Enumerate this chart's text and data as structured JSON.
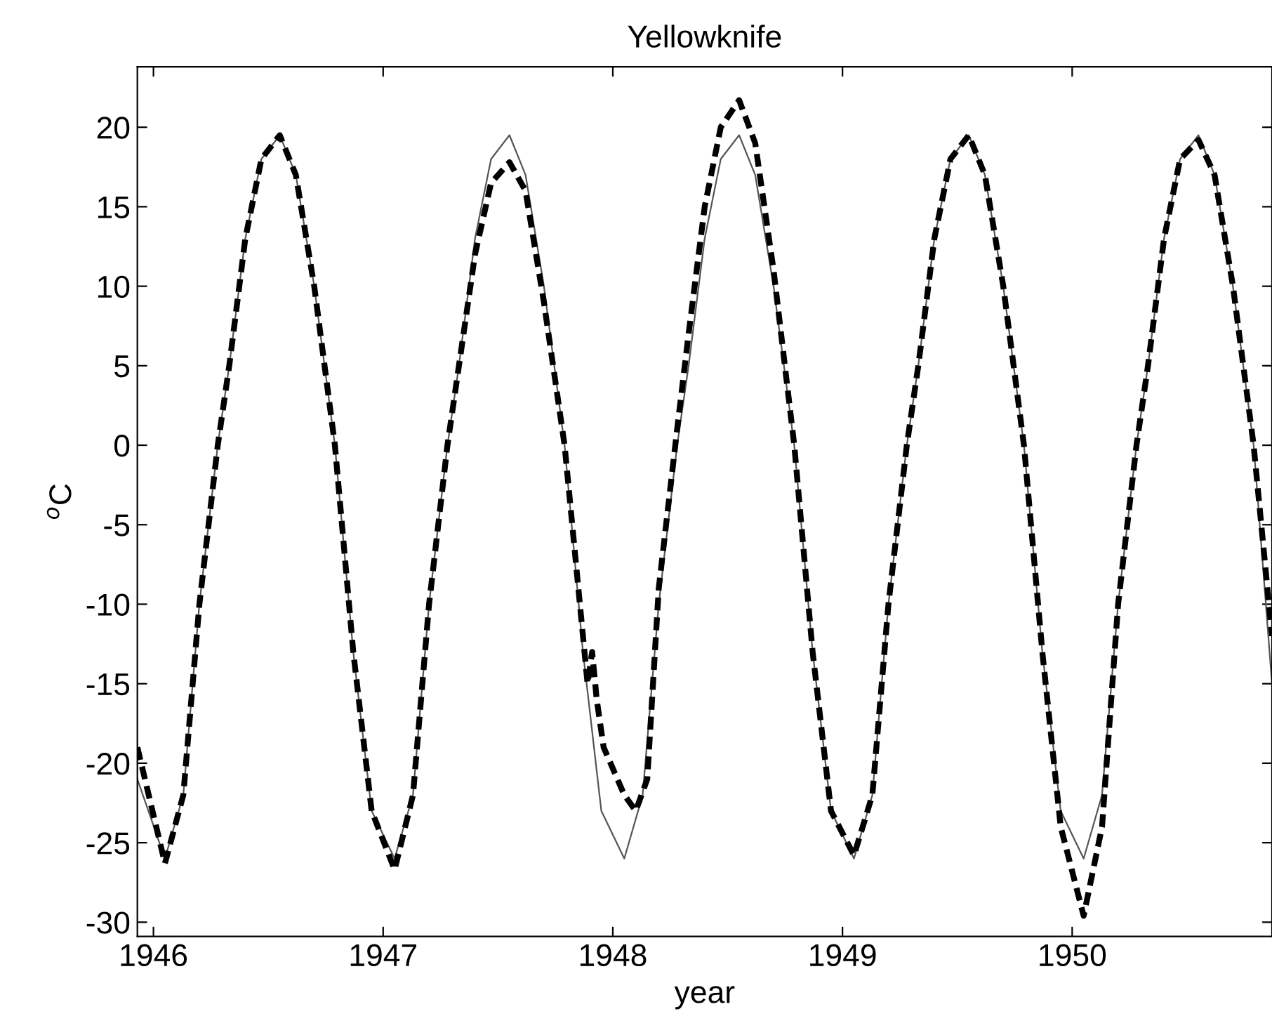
{
  "chart_data": {
    "type": "line",
    "title": "Yellowknife",
    "xlabel": "year",
    "ylabel": "$^{o}$C",
    "xlim": [
      1945.93,
      1950.87
    ],
    "xticks": [
      1946,
      1947,
      1948,
      1949,
      1950
    ],
    "ylim": [
      -30.9,
      23.8
    ],
    "yticks": [
      20,
      15,
      10,
      5,
      0,
      -5,
      -10,
      -15,
      -20,
      -25,
      -30
    ],
    "grid": false,
    "legend": false,
    "marker": "none",
    "series": [
      {
        "color": "#555555",
        "line_style": "solid",
        "x": [
          1945.93,
          1946.05,
          1946.13,
          1946.2,
          1946.28,
          1946.33,
          1946.4,
          1946.47,
          1946.55,
          1946.62,
          1946.7,
          1946.79,
          1946.87,
          1946.95,
          1947.05,
          1947.13,
          1947.2,
          1947.28,
          1947.33,
          1947.4,
          1947.47,
          1947.55,
          1947.62,
          1947.7,
          1947.79,
          1947.87,
          1947.95,
          1948.05,
          1948.13,
          1948.2,
          1948.28,
          1948.33,
          1948.4,
          1948.47,
          1948.55,
          1948.62,
          1948.7,
          1948.79,
          1948.87,
          1948.95,
          1949.05,
          1949.13,
          1949.2,
          1949.28,
          1949.33,
          1949.4,
          1949.47,
          1949.55,
          1949.62,
          1949.7,
          1949.79,
          1949.87,
          1949.95,
          1950.05,
          1950.13,
          1950.2,
          1950.28,
          1950.33,
          1950.4,
          1950.47,
          1950.55,
          1950.62,
          1950.7,
          1950.79,
          1950.87
        ],
        "values": [
          -21,
          -26,
          -22,
          -10,
          0,
          5,
          13,
          18,
          19.5,
          17,
          10,
          0,
          -13,
          -23,
          -26,
          -22,
          -10,
          0,
          5,
          13,
          18,
          19.5,
          17,
          10,
          0,
          -13,
          -23,
          -26,
          -22,
          -10,
          0,
          5,
          13,
          18,
          19.5,
          17,
          10,
          0,
          -13,
          -23,
          -26,
          -22,
          -10,
          0,
          5,
          13,
          18,
          19.5,
          17,
          10,
          0,
          -13,
          -23,
          -26,
          -22,
          -10,
          0,
          5,
          13,
          18,
          19.5,
          17,
          10,
          0,
          -15
        ]
      },
      {
        "color": "#000000",
        "line_style": "dashed",
        "x": [
          1945.93,
          1946.05,
          1946.13,
          1946.2,
          1946.28,
          1946.33,
          1946.4,
          1946.47,
          1946.55,
          1946.62,
          1946.7,
          1946.79,
          1946.87,
          1946.95,
          1947.05,
          1947.13,
          1947.2,
          1947.28,
          1947.33,
          1947.4,
          1947.47,
          1947.55,
          1947.62,
          1947.7,
          1947.79,
          1947.87,
          1947.89,
          1947.91,
          1947.93,
          1947.96,
          1948.05,
          1948.1,
          1948.15,
          1948.2,
          1948.28,
          1948.33,
          1948.4,
          1948.47,
          1948.55,
          1948.62,
          1948.7,
          1948.79,
          1948.87,
          1948.95,
          1949.05,
          1949.13,
          1949.2,
          1949.28,
          1949.33,
          1949.4,
          1949.47,
          1949.55,
          1949.62,
          1949.7,
          1949.79,
          1949.87,
          1949.95,
          1950.05,
          1950.13,
          1950.2,
          1950.28,
          1950.33,
          1950.4,
          1950.47,
          1950.55,
          1950.62,
          1950.7,
          1950.79,
          1950.87
        ],
        "values": [
          -19,
          -26.3,
          -22,
          -10,
          0,
          5,
          13,
          18,
          19.5,
          17,
          10,
          0,
          -13,
          -23,
          -26.7,
          -22,
          -10,
          0,
          5,
          12,
          16.5,
          17.8,
          16,
          9,
          0,
          -12,
          -15,
          -13,
          -16,
          -19,
          -22,
          -23,
          -21,
          -9,
          1,
          7,
          15,
          20,
          21.7,
          19,
          11,
          0,
          -13,
          -23,
          -25.8,
          -22,
          -10,
          0,
          5,
          13,
          18,
          19.5,
          17,
          10,
          0,
          -13,
          -24,
          -29.6,
          -24,
          -10,
          0,
          5,
          13,
          18,
          19.2,
          17,
          10,
          0,
          -12
        ]
      }
    ]
  }
}
